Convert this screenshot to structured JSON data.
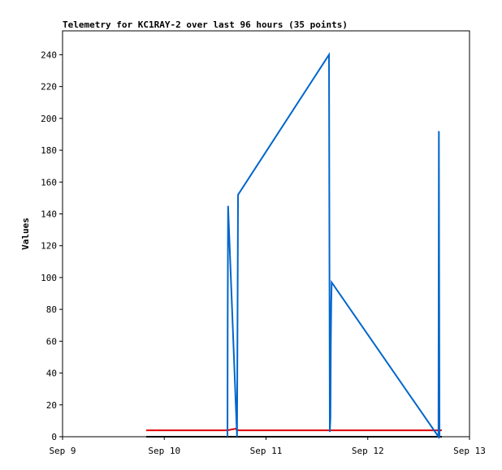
{
  "chart_data": {
    "type": "line",
    "title": "Telemetry for KC1RAY-2 over last 96 hours (35 points)",
    "y_label": "Values",
    "xlim": [
      9,
      13
    ],
    "xticks": [
      {
        "value": 9,
        "label": "Sep 9"
      },
      {
        "value": 10,
        "label": "Sep 10"
      },
      {
        "value": 11,
        "label": "Sep 11"
      },
      {
        "value": 12,
        "label": "Sep 12"
      },
      {
        "value": 13,
        "label": "Sep 13"
      }
    ],
    "ylim": [
      0,
      255
    ],
    "yticks": [
      0,
      20,
      40,
      60,
      80,
      100,
      120,
      140,
      160,
      180,
      200,
      220,
      240
    ],
    "series": [
      {
        "color": "#000000",
        "x": [
          9.822,
          12.728
        ],
        "values": [
          0,
          0
        ]
      },
      {
        "color": "#dd0000",
        "x": [
          9.822,
          10.62,
          10.7,
          10.73,
          12.728
        ],
        "values": [
          4,
          4,
          5,
          4,
          4
        ]
      },
      {
        "color": "#0066cc",
        "x": [
          10.621,
          10.623,
          10.627,
          10.715,
          10.717,
          10.725,
          11.619,
          11.627,
          11.633,
          11.637,
          11.641,
          11.645,
          12.695,
          12.697,
          12.699,
          12.705
        ],
        "values": [
          0,
          72,
          145,
          0,
          32,
          152,
          240,
          3,
          12,
          60,
          84,
          97,
          0,
          97,
          192,
          0
        ]
      }
    ]
  }
}
